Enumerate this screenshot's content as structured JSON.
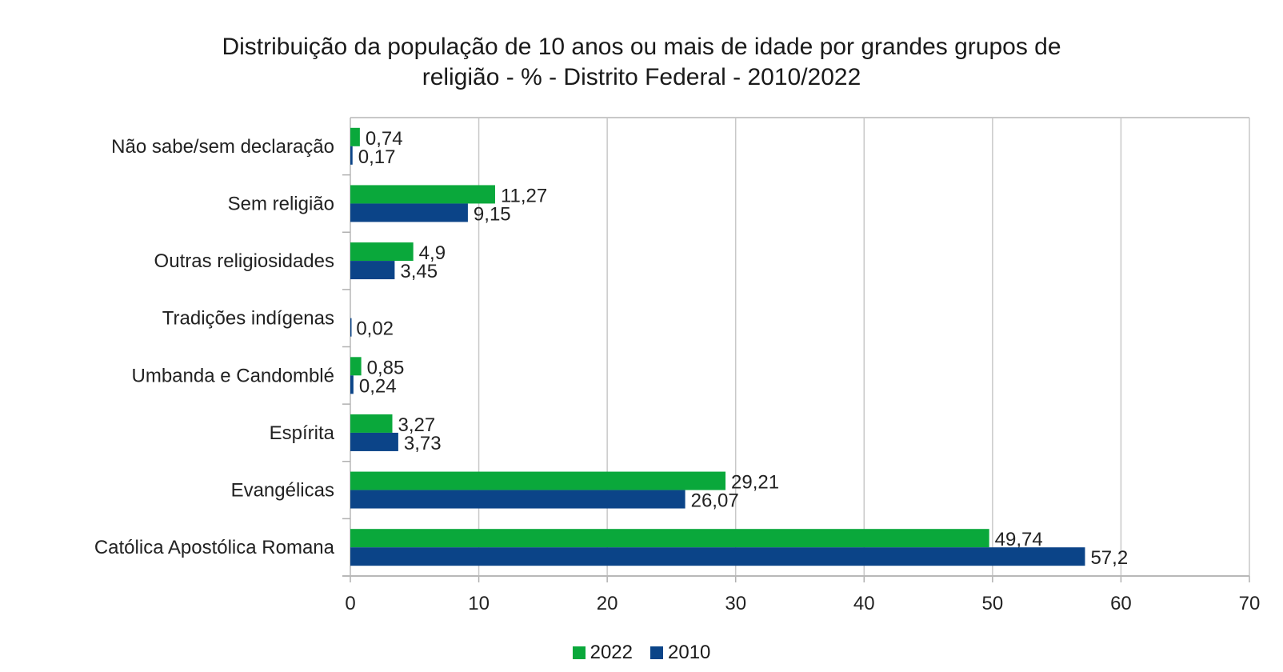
{
  "chart_data": {
    "type": "bar",
    "orientation": "horizontal",
    "title_lines": [
      "Distribuição da população de 10 anos ou mais de idade por grandes grupos de",
      "religião - % - Distrito Federal - 2010/2022"
    ],
    "categories": [
      "Não sabe/sem declaração",
      "Sem religião",
      "Outras religiosidades",
      "Tradições indígenas",
      "Umbanda e Candomblé",
      "Espírita",
      "Evangélicas",
      "Católica Apostólica Romana"
    ],
    "series": [
      {
        "name": "2022",
        "color": "#0aa83b",
        "values": [
          0.74,
          11.27,
          4.9,
          null,
          0.85,
          3.27,
          29.21,
          49.74
        ],
        "labels": [
          "0,74",
          "11,27",
          "4,9",
          "",
          "0,85",
          "3,27",
          "29,21",
          "49,74"
        ]
      },
      {
        "name": "2010",
        "color": "#0b4488",
        "values": [
          0.17,
          9.15,
          3.45,
          0.02,
          0.24,
          3.73,
          26.07,
          57.2
        ],
        "labels": [
          "0,17",
          "9,15",
          "3,45",
          "0,02",
          "0,24",
          "3,73",
          "26,07",
          "57,2"
        ]
      }
    ],
    "xlim": [
      0,
      70
    ],
    "xticks": [
      0,
      10,
      20,
      30,
      40,
      50,
      60,
      70
    ],
    "xtick_labels": [
      "0",
      "10",
      "20",
      "30",
      "40",
      "50",
      "60",
      "70"
    ],
    "xlabel": "",
    "ylabel": "",
    "grid": true,
    "legend_position": "bottom"
  }
}
